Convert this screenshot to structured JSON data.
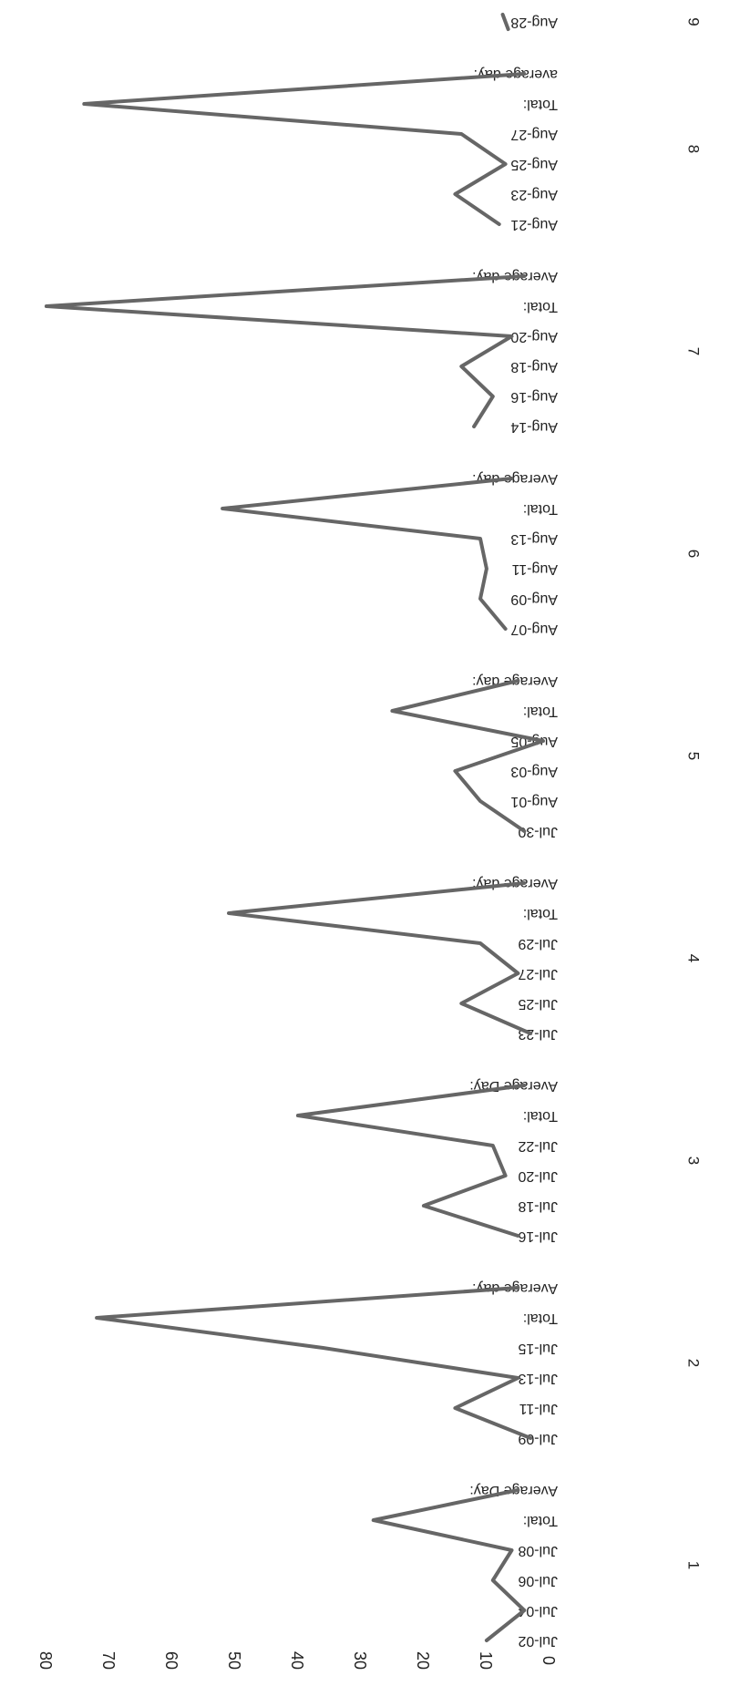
{
  "chart_data": {
    "type": "line",
    "title": "",
    "xlabel": "",
    "ylabel": "",
    "value_axis": {
      "range": [
        0,
        90
      ],
      "ticks": [
        "0",
        "10",
        "20",
        "30",
        "40",
        "50",
        "60",
        "70",
        "80",
        "90"
      ]
    },
    "grid": false,
    "legend": "none",
    "line_color": "#666666",
    "groups": [
      {
        "label": "1",
        "categories": [
          "Jul-02",
          "Jul-04",
          "Jul-06",
          "Jul-08",
          "Total:",
          "Average Day:"
        ],
        "values": [
          9,
          3,
          8,
          5,
          27,
          4
        ]
      },
      {
        "label": "2",
        "categories": [
          "Jul-09",
          "Jul-11",
          "Jul-13",
          "Jul-15",
          "Total:",
          "Average day:"
        ],
        "values": [
          2,
          14,
          4,
          35,
          71,
          4
        ]
      },
      {
        "label": "3",
        "categories": [
          "Jul-16",
          "Jul-18",
          "Jul-20",
          "Jul-22",
          "Total:",
          "Average Day:"
        ],
        "values": [
          4,
          19,
          6,
          8,
          39,
          3
        ]
      },
      {
        "label": "4",
        "categories": [
          "Jul-23",
          "Jul-25",
          "Jul-27",
          "Jul-29",
          "Total:",
          "Average day:"
        ],
        "values": [
          2,
          13,
          4,
          10,
          50,
          3
        ]
      },
      {
        "label": "5",
        "categories": [
          "Jul-30",
          "Aug-01",
          "Aug-03",
          "Aug-05",
          "Total:",
          "Average day:"
        ],
        "values": [
          3,
          10,
          14,
          0,
          24,
          4
        ]
      },
      {
        "label": "6",
        "categories": [
          "Aug-07",
          "Aug-09",
          "Aug-11",
          "Aug-13",
          "Total:",
          "Average day:"
        ],
        "values": [
          6,
          10,
          9,
          10,
          51,
          5
        ]
      },
      {
        "label": "7",
        "categories": [
          "Aug-14",
          "Aug-16",
          "Aug-18",
          "Aug-20",
          "Total:",
          "Average day:"
        ],
        "values": [
          11,
          8,
          13,
          5,
          79,
          3
        ]
      },
      {
        "label": "8",
        "categories": [
          "Aug-21",
          "Aug-23",
          "Aug-25",
          "Aug-27",
          "Total:",
          "average day:"
        ],
        "values": [
          7,
          14,
          6,
          13,
          73,
          3
        ]
      },
      {
        "label": "9",
        "categories": [
          "Aug-28"
        ],
        "values": [
          6
        ]
      }
    ]
  }
}
